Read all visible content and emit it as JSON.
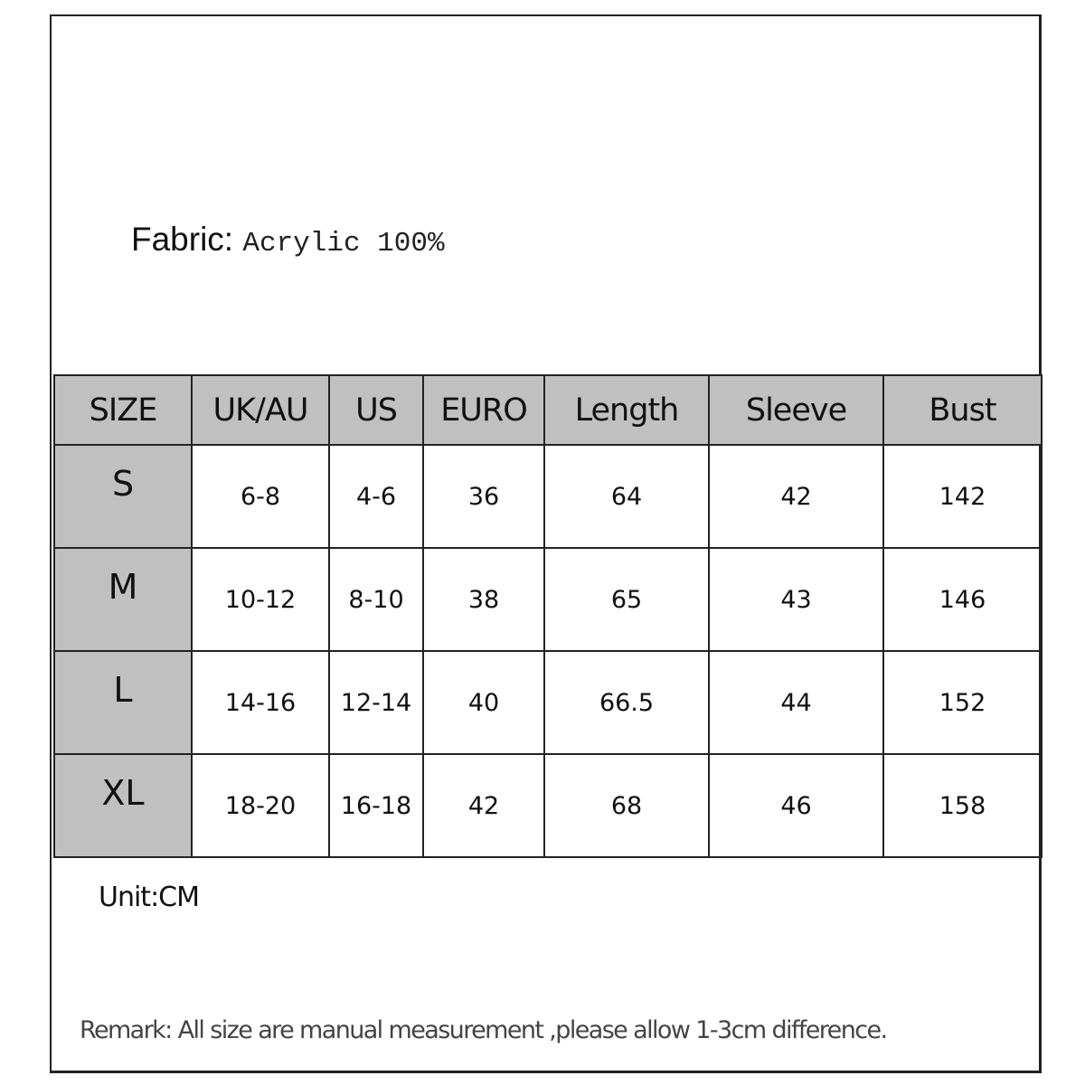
{
  "fabric": {
    "label": "Fabric:",
    "value": "Acrylic 100%"
  },
  "table": {
    "headers": [
      "SIZE",
      "UK/AU",
      "US",
      "EURO",
      "Length",
      "Sleeve",
      "Bust"
    ],
    "rows": [
      [
        "S",
        "6-8",
        "4-6",
        "36",
        "64",
        "42",
        "142"
      ],
      [
        "M",
        "10-12",
        "8-10",
        "38",
        "65",
        "43",
        "146"
      ],
      [
        "L",
        "14-16",
        "12-14",
        "40",
        "66.5",
        "44",
        "152"
      ],
      [
        "XL",
        "18-20",
        "16-18",
        "42",
        "68",
        "46",
        "158"
      ]
    ]
  },
  "unit": "Unit:CM",
  "remark": "Remark: All size are manual measurement ,please allow 1-3cm difference.",
  "colors": {
    "header_bg": "#c0c0c0",
    "border": "#222222"
  }
}
